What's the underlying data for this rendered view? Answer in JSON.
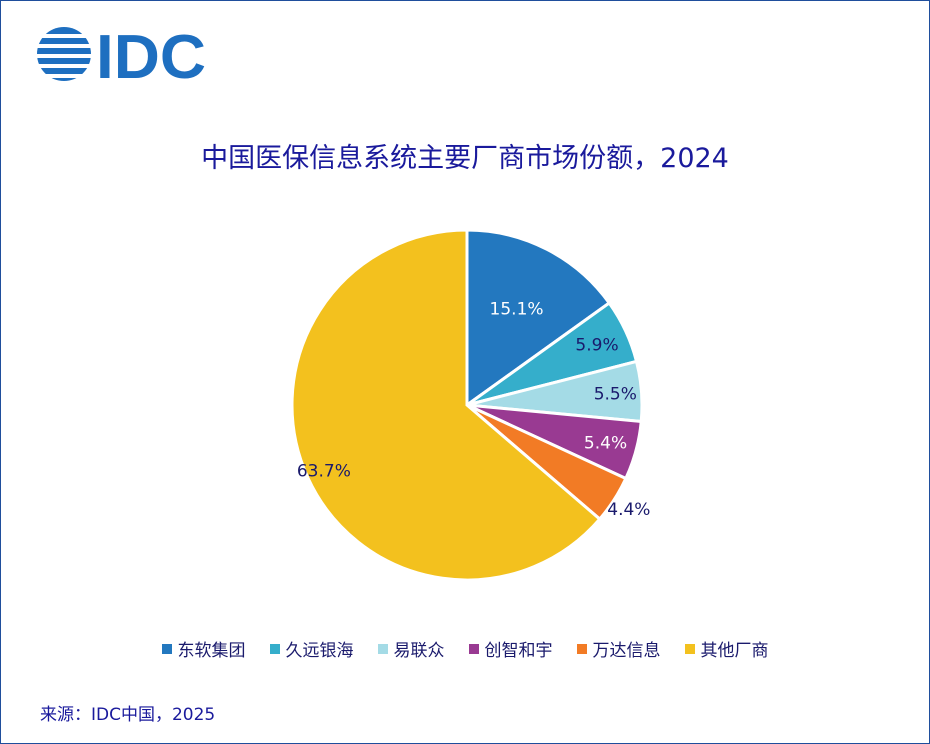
{
  "brand": {
    "logo_text": "IDC",
    "logo_color": "#1e6fc0"
  },
  "chart_data": {
    "type": "pie",
    "title": "中国医保信息系统主要厂商市场份额，2024",
    "slices": [
      {
        "label": "东软集团",
        "value": 15.1,
        "display": "15.1%",
        "color": "#2378bf",
        "label_color": "#ffffff"
      },
      {
        "label": "久远银海",
        "value": 5.9,
        "display": "5.9%",
        "color": "#35aecb",
        "label_color": "#1a1a6c"
      },
      {
        "label": "易联众",
        "value": 5.5,
        "display": "5.5%",
        "color": "#a4dbe6",
        "label_color": "#1a1a6c"
      },
      {
        "label": "创智和宇",
        "value": 5.4,
        "display": "5.4%",
        "color": "#993a92",
        "label_color": "#ffffff"
      },
      {
        "label": "万达信息",
        "value": 4.4,
        "display": "4.4%",
        "color": "#f27b25",
        "label_color": "#1a1a6c"
      },
      {
        "label": "其他厂商",
        "value": 63.7,
        "display": "63.7%",
        "color": "#f3c11e",
        "label_color": "#1a1a6c"
      }
    ],
    "start": "12 o'clock",
    "direction": "clockwise",
    "legend_position": "bottom"
  },
  "source": "来源：IDC中国，2025"
}
